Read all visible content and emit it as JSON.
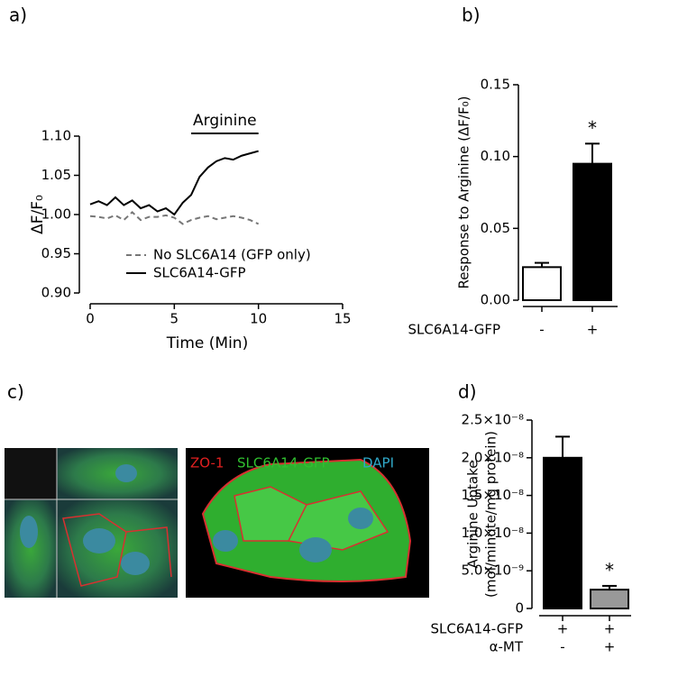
{
  "panel_labels": [
    "a)",
    "b)",
    "c)",
    "d)"
  ],
  "chart_data": [
    {
      "type": "line",
      "xlabel": "Time (Min)",
      "ylabel": "ΔF/F₀",
      "annotation": "Arginine",
      "x": [
        0,
        0.5,
        1,
        1.5,
        2,
        2.5,
        3,
        3.5,
        4,
        4.5,
        5,
        5.5,
        6,
        6.5,
        7,
        7.5,
        8,
        8.5,
        9,
        9.5,
        10
      ],
      "series": [
        {
          "name": "No SLC6A14 (GFP only)",
          "color": "#777777",
          "dash": true,
          "values": [
            0.998,
            0.997,
            0.995,
            0.999,
            0.993,
            1.003,
            0.993,
            0.997,
            0.997,
            0.999,
            0.996,
            0.988,
            0.993,
            0.996,
            0.998,
            0.994,
            0.996,
            0.998,
            0.996,
            0.993,
            0.988
          ]
        },
        {
          "name": "SLC6A14-GFP",
          "color": "#000000",
          "dash": false,
          "values": [
            1.013,
            1.017,
            1.012,
            1.022,
            1.012,
            1.018,
            1.008,
            1.012,
            1.004,
            1.008,
            1.0,
            1.015,
            1.025,
            1.048,
            1.06,
            1.068,
            1.072,
            1.07,
            1.075,
            1.078,
            1.081
          ]
        }
      ],
      "xlim": [
        0,
        15
      ],
      "xticks": [
        0,
        5,
        10,
        15
      ],
      "ylim": [
        0.9,
        1.1
      ],
      "yticks": [
        {
          "value": 0.9,
          "label": "0.90"
        },
        {
          "value": 0.95,
          "label": "0.95"
        },
        {
          "value": 1.0,
          "label": "1.00"
        },
        {
          "value": 1.05,
          "label": "1.05"
        },
        {
          "value": 1.1,
          "label": "1.10"
        }
      ]
    },
    {
      "type": "bar",
      "ylabel": "Response to Arginine (ΔF/F₀)",
      "x_rows": [
        {
          "name": "SLC6A14-GFP",
          "labels": [
            "-",
            "+"
          ]
        }
      ],
      "values": [
        0.023,
        0.095
      ],
      "errors": [
        0.003,
        0.014
      ],
      "colors": [
        "#ffffff",
        "#000000"
      ],
      "annotations": [
        null,
        "*"
      ],
      "ylim": [
        0,
        0.15
      ],
      "yticks": [
        {
          "value": 0,
          "label": "0.00"
        },
        {
          "value": 0.05,
          "label": "0.05"
        },
        {
          "value": 0.1,
          "label": "0.10"
        },
        {
          "value": 0.15,
          "label": "0.15"
        }
      ]
    },
    {
      "type": "bar",
      "ylabel": [
        "Arginine Uptake",
        "(mol/minute/mg protein)"
      ],
      "x_rows": [
        {
          "name": "SLC6A14-GFP",
          "labels": [
            "+",
            "+"
          ]
        },
        {
          "name": "α-MT",
          "labels": [
            "-",
            "+"
          ]
        }
      ],
      "values": [
        2e-08,
        2.5e-09
      ],
      "errors": [
        2.8e-09,
        5e-10
      ],
      "colors": [
        "#000000",
        "#999999"
      ],
      "annotations": [
        null,
        "*"
      ],
      "ylim": [
        0,
        2.5e-08
      ],
      "yticks": [
        0,
        {
          "value": 5e-09,
          "label": "5.0×10⁻⁹"
        },
        {
          "value": 1e-08,
          "label": "1.0×10⁻⁸"
        },
        {
          "value": 1.5e-08,
          "label": "1.5×10⁻⁸"
        },
        {
          "value": 2e-08,
          "label": "2.0×10⁻⁸"
        },
        {
          "value": 2.5e-08,
          "label": "2.5×10⁻⁸"
        }
      ]
    }
  ],
  "image_labels": [
    "ZO-1",
    "SLC6A14-GFP",
    "DAPI"
  ]
}
